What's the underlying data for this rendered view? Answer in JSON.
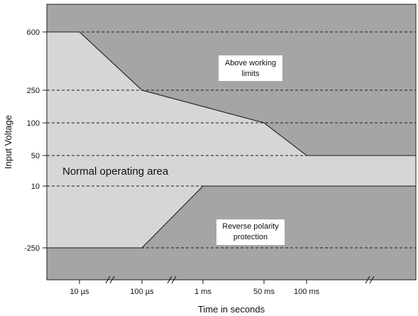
{
  "chart_data": {
    "type": "area",
    "title": "",
    "xlabel": "Time in seconds",
    "ylabel": "Input Voltage",
    "categories": [
      "10 µs",
      "100 µs",
      "1 ms",
      "50 ms",
      "100 ms"
    ],
    "y_ticks": [
      600,
      250,
      100,
      50,
      10,
      -250
    ],
    "axis_breaks": [
      "10 µs–100 µs",
      "100 µs–1 ms",
      "100 ms+"
    ],
    "grid": "horizontal dashed",
    "upper_limit": {
      "name": "Above working limits",
      "points": [
        {
          "x": "start",
          "y": 600
        },
        {
          "x": "10 µs",
          "y": 600
        },
        {
          "x": "100 µs",
          "y": 250
        },
        {
          "x": "50 ms",
          "y": 100
        },
        {
          "x": "100 ms",
          "y": 50
        },
        {
          "x": "end",
          "y": 50
        }
      ]
    },
    "lower_limit": {
      "name": "Reverse polarity protection",
      "points": [
        {
          "x": "start",
          "y": -250
        },
        {
          "x": "100 µs",
          "y": -250
        },
        {
          "x": "1 ms",
          "y": 10
        },
        {
          "x": "end",
          "y": 10
        }
      ]
    },
    "regions": [
      {
        "name": "upper",
        "label_lines": [
          "Above working",
          "limits"
        ]
      },
      {
        "name": "lower",
        "label_lines": [
          "Reverse polarity",
          "protection"
        ]
      },
      {
        "name": "normal",
        "label": "Normal operating area"
      }
    ],
    "colors": {
      "outside_area": "#a5a5a5",
      "normal_area": "#d6d6d6",
      "lines": "#1a1a1a"
    }
  }
}
